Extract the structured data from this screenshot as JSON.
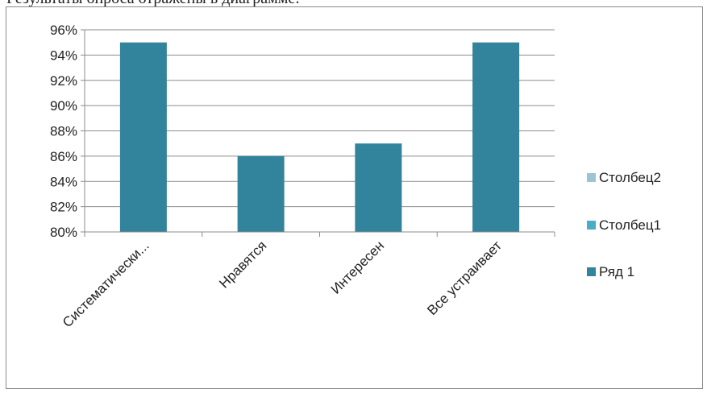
{
  "page": {
    "top_text": "Результаты опроса отражены в диаграмме:"
  },
  "chart_data": {
    "type": "bar",
    "categories": [
      "Систематически...",
      "Нравятся",
      "Интересен",
      "Все устраивает"
    ],
    "series": [
      {
        "name": "Ряд 1",
        "values": [
          0.95,
          0.86,
          0.87,
          0.95
        ],
        "color": "#31849b"
      }
    ],
    "legend": [
      {
        "name": "Столбец2",
        "color": "#9dc3d4"
      },
      {
        "name": "Столбец1",
        "color": "#4bacc6"
      },
      {
        "name": "Ряд 1",
        "color": "#31849b"
      }
    ],
    "ylim": [
      0.8,
      0.96
    ],
    "ytick_step": 0.02,
    "ytick_labels": [
      "80%",
      "82%",
      "84%",
      "86%",
      "88%",
      "90%",
      "92%",
      "94%",
      "96%"
    ],
    "grid": true,
    "legend_position": "right",
    "title": "",
    "xlabel": "",
    "ylabel": ""
  }
}
